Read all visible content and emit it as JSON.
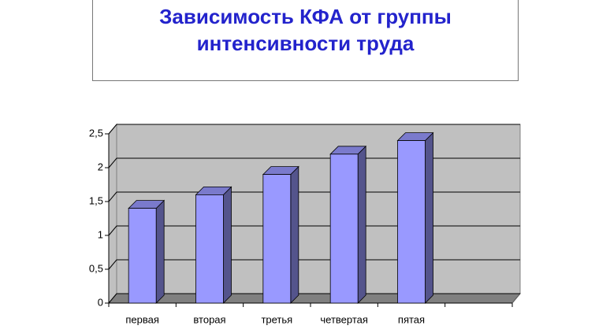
{
  "chart_data": {
    "type": "bar3d",
    "title": "Зависимость КФА от группы интенсивности труда",
    "categories": [
      "первая",
      "вторая",
      "третья",
      "четвертая",
      "пятая",
      null
    ],
    "values": [
      1.4,
      1.6,
      1.9,
      2.2,
      2.4,
      null
    ],
    "color": "#9999ff",
    "ylim": [
      0,
      2.5
    ],
    "yticks": [
      0,
      {
        "value": 0.5,
        "label": "0,5"
      },
      1,
      {
        "value": 1.5,
        "label": "1,5"
      },
      2,
      {
        "value": 2.5,
        "label": "2,5"
      }
    ],
    "grid": true
  }
}
